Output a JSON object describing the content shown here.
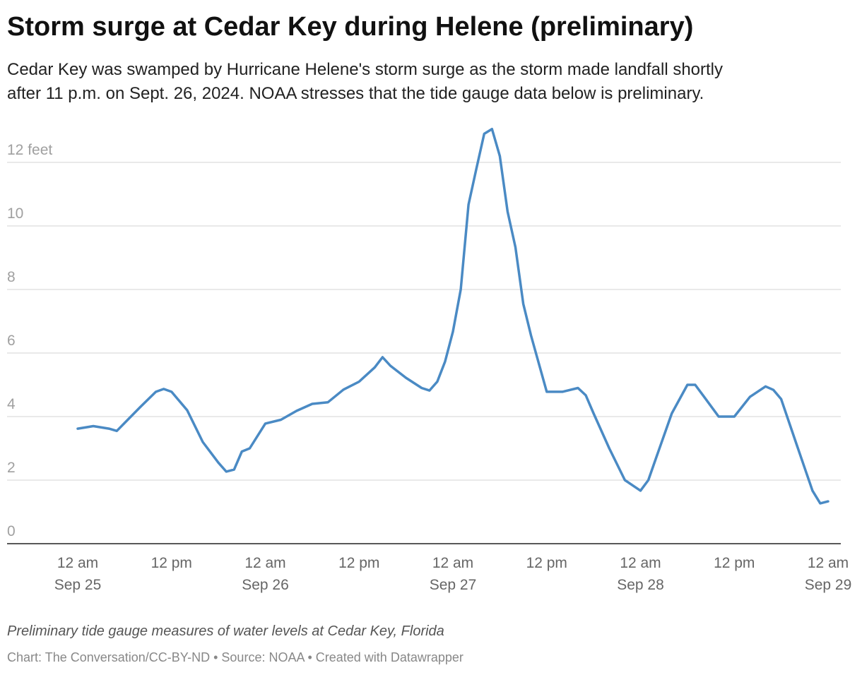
{
  "chart_data": {
    "type": "line",
    "title": "Storm surge at Cedar Key during Helene (preliminary)",
    "subtitle": [
      "Cedar Key was swamped by Hurricane Helene's storm surge as the storm made landfall shortly",
      "after 11 p.m. on Sept. 26, 2024. NOAA stresses that the tide gauge data below is preliminary."
    ],
    "note": "Preliminary tide gauge measures of water levels at Cedar Key, Florida",
    "credit": "Chart: The Conversation/CC-BY-ND • Source: NOAA • Created with Datawrapper",
    "x": [
      0,
      2,
      4,
      5,
      6,
      8,
      10,
      11,
      12,
      14,
      16,
      18,
      19,
      20,
      21,
      22,
      24,
      26,
      28,
      30,
      32,
      34,
      36,
      38,
      39,
      40,
      42,
      44,
      45,
      46,
      47,
      48,
      49,
      50,
      51,
      52,
      53,
      54,
      55,
      56,
      57,
      58,
      60,
      62,
      64,
      65,
      66,
      68,
      70,
      72,
      73,
      74,
      76,
      78,
      79,
      80,
      82,
      84,
      86,
      88,
      89,
      90,
      92,
      94,
      95,
      96
    ],
    "series": [
      {
        "name": "Water level",
        "color": "#4a8ac4",
        "values": [
          3.62,
          3.7,
          3.62,
          3.55,
          3.8,
          4.3,
          4.78,
          4.87,
          4.78,
          4.2,
          3.2,
          2.55,
          2.27,
          2.33,
          2.9,
          3.0,
          3.78,
          3.9,
          4.18,
          4.4,
          4.45,
          4.85,
          5.1,
          5.55,
          5.87,
          5.6,
          5.22,
          4.9,
          4.82,
          5.1,
          5.73,
          6.67,
          8.0,
          10.67,
          11.8,
          12.9,
          13.05,
          12.2,
          10.45,
          9.33,
          7.55,
          6.55,
          4.78,
          4.78,
          4.9,
          4.67,
          4.1,
          3.0,
          2.0,
          1.67,
          2.0,
          2.7,
          4.1,
          5.0,
          5.0,
          4.67,
          4.0,
          4.0,
          4.62,
          4.95,
          4.84,
          4.55,
          3.1,
          1.67,
          1.27,
          1.33
        ]
      }
    ],
    "xlim": [
      0,
      96
    ],
    "xticks": [
      {
        "value": 0,
        "label": [
          "12 am",
          "Sep 25"
        ]
      },
      {
        "value": 12,
        "label": [
          "12 pm"
        ]
      },
      {
        "value": 24,
        "label": [
          "12 am",
          "Sep 26"
        ]
      },
      {
        "value": 36,
        "label": [
          "12 pm"
        ]
      },
      {
        "value": 48,
        "label": [
          "12 am",
          "Sep 27"
        ]
      },
      {
        "value": 60,
        "label": [
          "12 pm"
        ]
      },
      {
        "value": 72,
        "label": [
          "12 am",
          "Sep 28"
        ]
      },
      {
        "value": 84,
        "label": [
          "12 pm"
        ]
      },
      {
        "value": 96,
        "label": [
          "12 am",
          "Sep 29"
        ]
      }
    ],
    "ylim": [
      0,
      13.2
    ],
    "yticks": [
      0,
      2,
      4,
      6,
      8,
      10,
      {
        "value": 12,
        "label": "12 feet"
      }
    ],
    "grid": true
  }
}
